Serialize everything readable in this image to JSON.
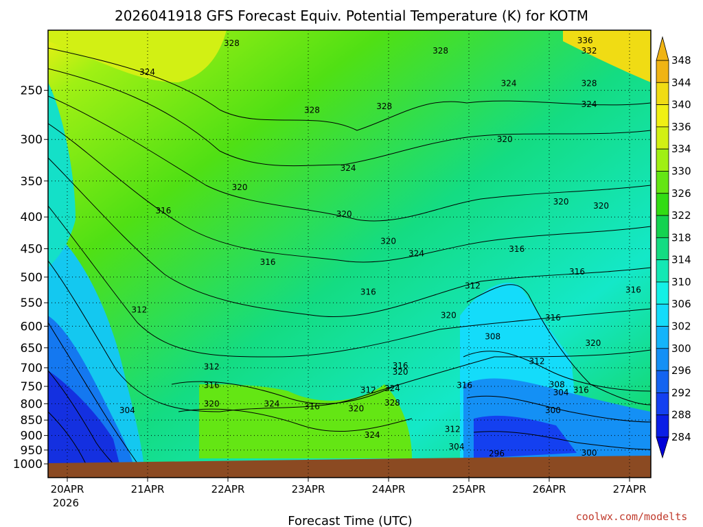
{
  "title": "2026041918 GFS Forecast Equiv. Potential Temperature (K) for KOTM",
  "credit": "coolwx.com/modelts",
  "colors": {
    "ground": "#8b4a22",
    "credit": "#c0392b"
  },
  "chart_data": {
    "type": "heatmap",
    "title": "2026041918 GFS Forecast Equiv. Potential Temperature (K) for KOTM",
    "xlabel": "Forecast Time (UTC)",
    "ylabel": "",
    "x_ticks": [
      "20APR",
      "21APR",
      "22APR",
      "23APR",
      "24APR",
      "25APR",
      "26APR",
      "27APR"
    ],
    "x_year": "2026",
    "y_ticks": [
      250,
      300,
      350,
      400,
      450,
      500,
      550,
      600,
      650,
      700,
      750,
      800,
      850,
      900,
      950,
      1000
    ],
    "y_scale": "log-pressure",
    "y_range": [
      200,
      1000
    ],
    "x_range_days": [
      0,
      7.5
    ],
    "surface_pressure": 975,
    "grid": "dotted",
    "colorbar": {
      "levels": [
        284,
        288,
        292,
        296,
        300,
        302,
        306,
        310,
        314,
        318,
        322,
        326,
        330,
        334,
        336,
        340,
        344,
        348
      ],
      "colors": [
        "#0000d8",
        "#0a1ee6",
        "#1440f0",
        "#1464f0",
        "#1490f5",
        "#14b4fa",
        "#14dcfa",
        "#14f0e6",
        "#14e8b4",
        "#14dc82",
        "#14d250",
        "#32dc14",
        "#64e614",
        "#a0f014",
        "#d2f014",
        "#f0f014",
        "#f0dc14",
        "#f0b414"
      ]
    },
    "contour_labels": [
      {
        "value": "328",
        "x": 2.2,
        "p": 212
      },
      {
        "value": "324",
        "x": 1.15,
        "p": 236
      },
      {
        "value": "328",
        "x": 4.8,
        "p": 218
      },
      {
        "value": "336",
        "x": 6.6,
        "p": 210
      },
      {
        "value": "332",
        "x": 6.65,
        "p": 218
      },
      {
        "value": "328",
        "x": 3.2,
        "p": 272
      },
      {
        "value": "328",
        "x": 4.1,
        "p": 268
      },
      {
        "value": "324",
        "x": 5.65,
        "p": 246
      },
      {
        "value": "328",
        "x": 6.65,
        "p": 246
      },
      {
        "value": "324",
        "x": 6.65,
        "p": 266
      },
      {
        "value": "320",
        "x": 5.6,
        "p": 303
      },
      {
        "value": "324",
        "x": 3.65,
        "p": 337
      },
      {
        "value": "320",
        "x": 2.3,
        "p": 362
      },
      {
        "value": "316",
        "x": 1.35,
        "p": 395
      },
      {
        "value": "320",
        "x": 3.6,
        "p": 400
      },
      {
        "value": "320",
        "x": 6.3,
        "p": 382
      },
      {
        "value": "320",
        "x": 6.8,
        "p": 388
      },
      {
        "value": "320",
        "x": 4.15,
        "p": 442
      },
      {
        "value": "324",
        "x": 4.5,
        "p": 463
      },
      {
        "value": "316",
        "x": 5.75,
        "p": 455
      },
      {
        "value": "316",
        "x": 2.65,
        "p": 478
      },
      {
        "value": "316",
        "x": 6.5,
        "p": 495
      },
      {
        "value": "316",
        "x": 3.9,
        "p": 534
      },
      {
        "value": "312",
        "x": 5.2,
        "p": 522
      },
      {
        "value": "316",
        "x": 7.2,
        "p": 530
      },
      {
        "value": "312",
        "x": 1.05,
        "p": 570
      },
      {
        "value": "320",
        "x": 4.9,
        "p": 582
      },
      {
        "value": "316",
        "x": 6.2,
        "p": 587
      },
      {
        "value": "308",
        "x": 5.45,
        "p": 630
      },
      {
        "value": "320",
        "x": 6.7,
        "p": 645
      },
      {
        "value": "312",
        "x": 1.95,
        "p": 705
      },
      {
        "value": "316",
        "x": 4.3,
        "p": 702
      },
      {
        "value": "320",
        "x": 4.3,
        "p": 718
      },
      {
        "value": "312",
        "x": 6.0,
        "p": 690
      },
      {
        "value": "316",
        "x": 1.95,
        "p": 755
      },
      {
        "value": "312",
        "x": 3.9,
        "p": 768
      },
      {
        "value": "324",
        "x": 4.2,
        "p": 763
      },
      {
        "value": "316",
        "x": 5.1,
        "p": 755
      },
      {
        "value": "308",
        "x": 6.25,
        "p": 753
      },
      {
        "value": "304",
        "x": 6.3,
        "p": 775
      },
      {
        "value": "316",
        "x": 6.55,
        "p": 768
      },
      {
        "value": "320",
        "x": 1.95,
        "p": 808
      },
      {
        "value": "324",
        "x": 2.7,
        "p": 808
      },
      {
        "value": "316",
        "x": 3.2,
        "p": 817
      },
      {
        "value": "320",
        "x": 3.75,
        "p": 823
      },
      {
        "value": "328",
        "x": 4.2,
        "p": 805
      },
      {
        "value": "304",
        "x": 0.9,
        "p": 828
      },
      {
        "value": "300",
        "x": 6.2,
        "p": 828
      },
      {
        "value": "324",
        "x": 3.95,
        "p": 908
      },
      {
        "value": "312",
        "x": 4.95,
        "p": 888
      },
      {
        "value": "304",
        "x": 5.0,
        "p": 948
      },
      {
        "value": "296",
        "x": 5.5,
        "p": 972
      },
      {
        "value": "300",
        "x": 6.65,
        "p": 970
      }
    ]
  }
}
